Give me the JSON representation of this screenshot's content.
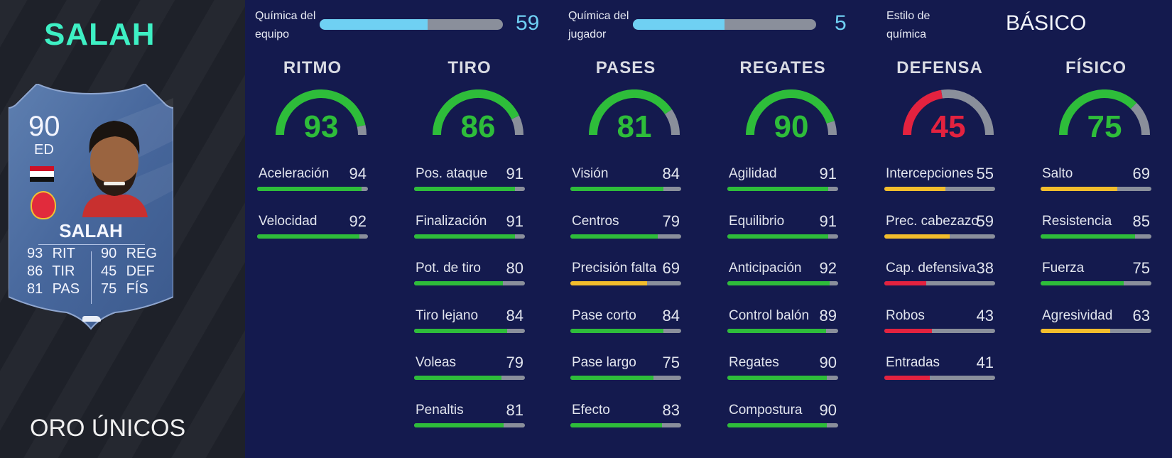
{
  "player": {
    "name": "SALAH",
    "version": "ORO ÚNICOS",
    "card": {
      "rating": "90",
      "position": "ED",
      "name": "SALAH",
      "stats": [
        {
          "value": "93",
          "label": "RIT"
        },
        {
          "value": "86",
          "label": "TIR"
        },
        {
          "value": "81",
          "label": "PAS"
        },
        {
          "value": "90",
          "label": "REG"
        },
        {
          "value": "45",
          "label": "DEF"
        },
        {
          "value": "75",
          "label": "FÍS"
        }
      ]
    }
  },
  "chemistry": {
    "team": {
      "label_line1": "Química del",
      "label_line2": "equipo",
      "value": "59",
      "fraction": 0.59
    },
    "player": {
      "label_line1": "Química del",
      "label_line2": "jugador",
      "value": "5",
      "fraction": 0.5
    },
    "style": {
      "label_line1": "Estilo de",
      "label_line2": "química",
      "value": "BÁSICO"
    }
  },
  "colors": {
    "green": "#2ebd3a",
    "yellow": "#f2bd2c",
    "red": "#e3223f",
    "track": "#8a8f9b",
    "chem": "#6fd0f3",
    "accent_name": "#3ef0c4"
  },
  "columns": [
    {
      "title": "RITMO",
      "rating": 93,
      "color": "green",
      "stats": [
        {
          "label": "Aceleración",
          "value": 94,
          "color": "green"
        },
        {
          "label": "Velocidad",
          "value": 92,
          "color": "green"
        }
      ]
    },
    {
      "title": "TIRO",
      "rating": 86,
      "color": "green",
      "stats": [
        {
          "label": "Pos. ataque",
          "value": 91,
          "color": "green"
        },
        {
          "label": "Finalización",
          "value": 91,
          "color": "green"
        },
        {
          "label": "Pot. de tiro",
          "value": 80,
          "color": "green"
        },
        {
          "label": "Tiro lejano",
          "value": 84,
          "color": "green"
        },
        {
          "label": "Voleas",
          "value": 79,
          "color": "green"
        },
        {
          "label": "Penaltis",
          "value": 81,
          "color": "green"
        }
      ]
    },
    {
      "title": "PASES",
      "rating": 81,
      "color": "green",
      "stats": [
        {
          "label": "Visión",
          "value": 84,
          "color": "green"
        },
        {
          "label": "Centros",
          "value": 79,
          "color": "green"
        },
        {
          "label": "Precisión falta",
          "value": 69,
          "color": "yellow"
        },
        {
          "label": "Pase corto",
          "value": 84,
          "color": "green"
        },
        {
          "label": "Pase largo",
          "value": 75,
          "color": "green"
        },
        {
          "label": "Efecto",
          "value": 83,
          "color": "green"
        }
      ]
    },
    {
      "title": "REGATES",
      "rating": 90,
      "color": "green",
      "stats": [
        {
          "label": "Agilidad",
          "value": 91,
          "color": "green"
        },
        {
          "label": "Equilibrio",
          "value": 91,
          "color": "green"
        },
        {
          "label": "Anticipación",
          "value": 92,
          "color": "green"
        },
        {
          "label": "Control balón",
          "value": 89,
          "color": "green"
        },
        {
          "label": "Regates",
          "value": 90,
          "color": "green"
        },
        {
          "label": "Compostura",
          "value": 90,
          "color": "green"
        }
      ]
    },
    {
      "title": "DEFENSA",
      "rating": 45,
      "color": "red",
      "stats": [
        {
          "label": "Intercepciones",
          "value": 55,
          "color": "yellow"
        },
        {
          "label": "Prec. cabezazo",
          "value": 59,
          "color": "yellow"
        },
        {
          "label": "Cap. defensiva",
          "value": 38,
          "color": "red"
        },
        {
          "label": "Robos",
          "value": 43,
          "color": "red"
        },
        {
          "label": "Entradas",
          "value": 41,
          "color": "red"
        }
      ]
    },
    {
      "title": "FÍSICO",
      "rating": 75,
      "color": "green",
      "stats": [
        {
          "label": "Salto",
          "value": 69,
          "color": "yellow"
        },
        {
          "label": "Resistencia",
          "value": 85,
          "color": "green"
        },
        {
          "label": "Fuerza",
          "value": 75,
          "color": "green"
        },
        {
          "label": "Agresividad",
          "value": 63,
          "color": "yellow"
        }
      ]
    }
  ]
}
